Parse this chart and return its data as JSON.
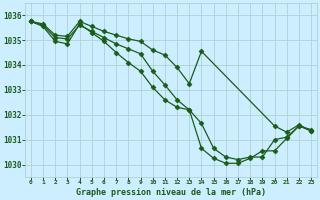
{
  "title": "Graphe pression niveau de la mer (hPa)",
  "background_color": "#cceeff",
  "grid_color": "#aacccc",
  "line_color": "#1a5c1a",
  "xlim": [
    -0.5,
    23.5
  ],
  "ylim": [
    1029.5,
    1036.5
  ],
  "xticks": [
    0,
    1,
    2,
    3,
    4,
    5,
    6,
    7,
    8,
    9,
    10,
    11,
    12,
    13,
    14,
    15,
    16,
    17,
    18,
    19,
    20,
    21,
    22,
    23
  ],
  "yticks": [
    1030,
    1031,
    1032,
    1033,
    1034,
    1035,
    1036
  ],
  "curves": [
    {
      "x": [
        0,
        1,
        2,
        3,
        4,
        5,
        6,
        7,
        8,
        9,
        10,
        11,
        12,
        13,
        14,
        20,
        21,
        22,
        23
      ],
      "y": [
        1035.75,
        1035.65,
        1035.2,
        1035.15,
        1035.75,
        1035.55,
        1035.35,
        1035.2,
        1035.05,
        1034.95,
        1034.6,
        1034.4,
        1033.9,
        1033.25,
        1034.55,
        1031.55,
        1031.3,
        1031.6,
        1031.35
      ],
      "marker": "D",
      "markersize": 2.5,
      "linewidth": 0.9
    },
    {
      "x": [
        0,
        1,
        2,
        3,
        4,
        5,
        6,
        7,
        8,
        9,
        10,
        11,
        12,
        13,
        14,
        15,
        16,
        17,
        18,
        19,
        20,
        21,
        22,
        23
      ],
      "y": [
        1035.75,
        1035.6,
        1035.1,
        1035.05,
        1035.6,
        1035.35,
        1035.1,
        1034.85,
        1034.65,
        1034.45,
        1033.75,
        1033.2,
        1032.6,
        1032.2,
        1031.65,
        1030.65,
        1030.3,
        1030.2,
        1030.3,
        1030.3,
        1031.0,
        1031.1,
        1031.55,
        1031.4
      ],
      "marker": "D",
      "markersize": 2.5,
      "linewidth": 0.9
    },
    {
      "x": [
        0,
        1,
        2,
        3,
        4,
        5,
        6,
        7,
        8,
        9,
        10,
        11,
        12,
        13,
        14,
        15,
        16,
        17,
        18,
        19,
        20,
        21,
        22,
        23
      ],
      "y": [
        1035.75,
        1035.55,
        1034.95,
        1034.85,
        1035.65,
        1035.3,
        1034.95,
        1034.5,
        1034.1,
        1033.75,
        1033.1,
        1032.6,
        1032.3,
        1032.2,
        1030.65,
        1030.25,
        1030.05,
        1030.05,
        1030.25,
        1030.55,
        1030.55,
        1031.05,
        1031.55,
        1031.35
      ],
      "marker": "D",
      "markersize": 2.5,
      "linewidth": 0.9
    }
  ]
}
